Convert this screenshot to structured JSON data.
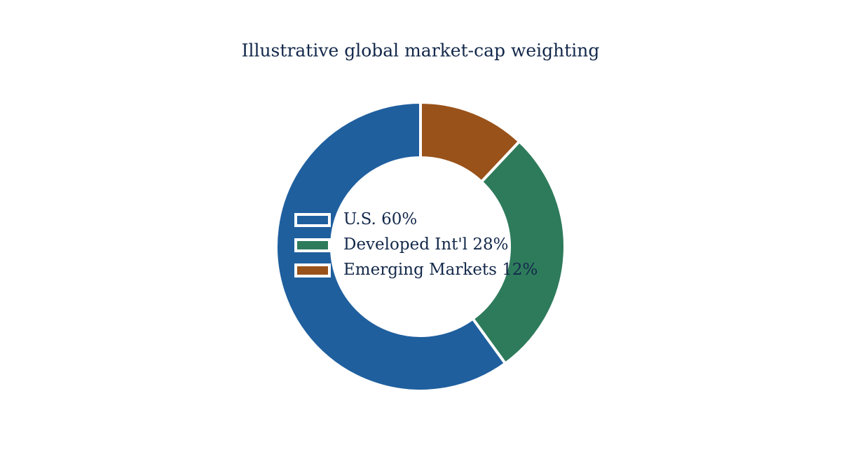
{
  "chart_data": {
    "type": "donut",
    "title": "Illustrative global market-cap weighting",
    "categories": [
      "U.S. 60%",
      "Developed Int'l 28%",
      "Emerging Markets 12%"
    ],
    "values": [
      60,
      28,
      12
    ],
    "colors": [
      "#1f5f9e",
      "#2e7b5c",
      "#99521a"
    ],
    "legend": "center"
  }
}
